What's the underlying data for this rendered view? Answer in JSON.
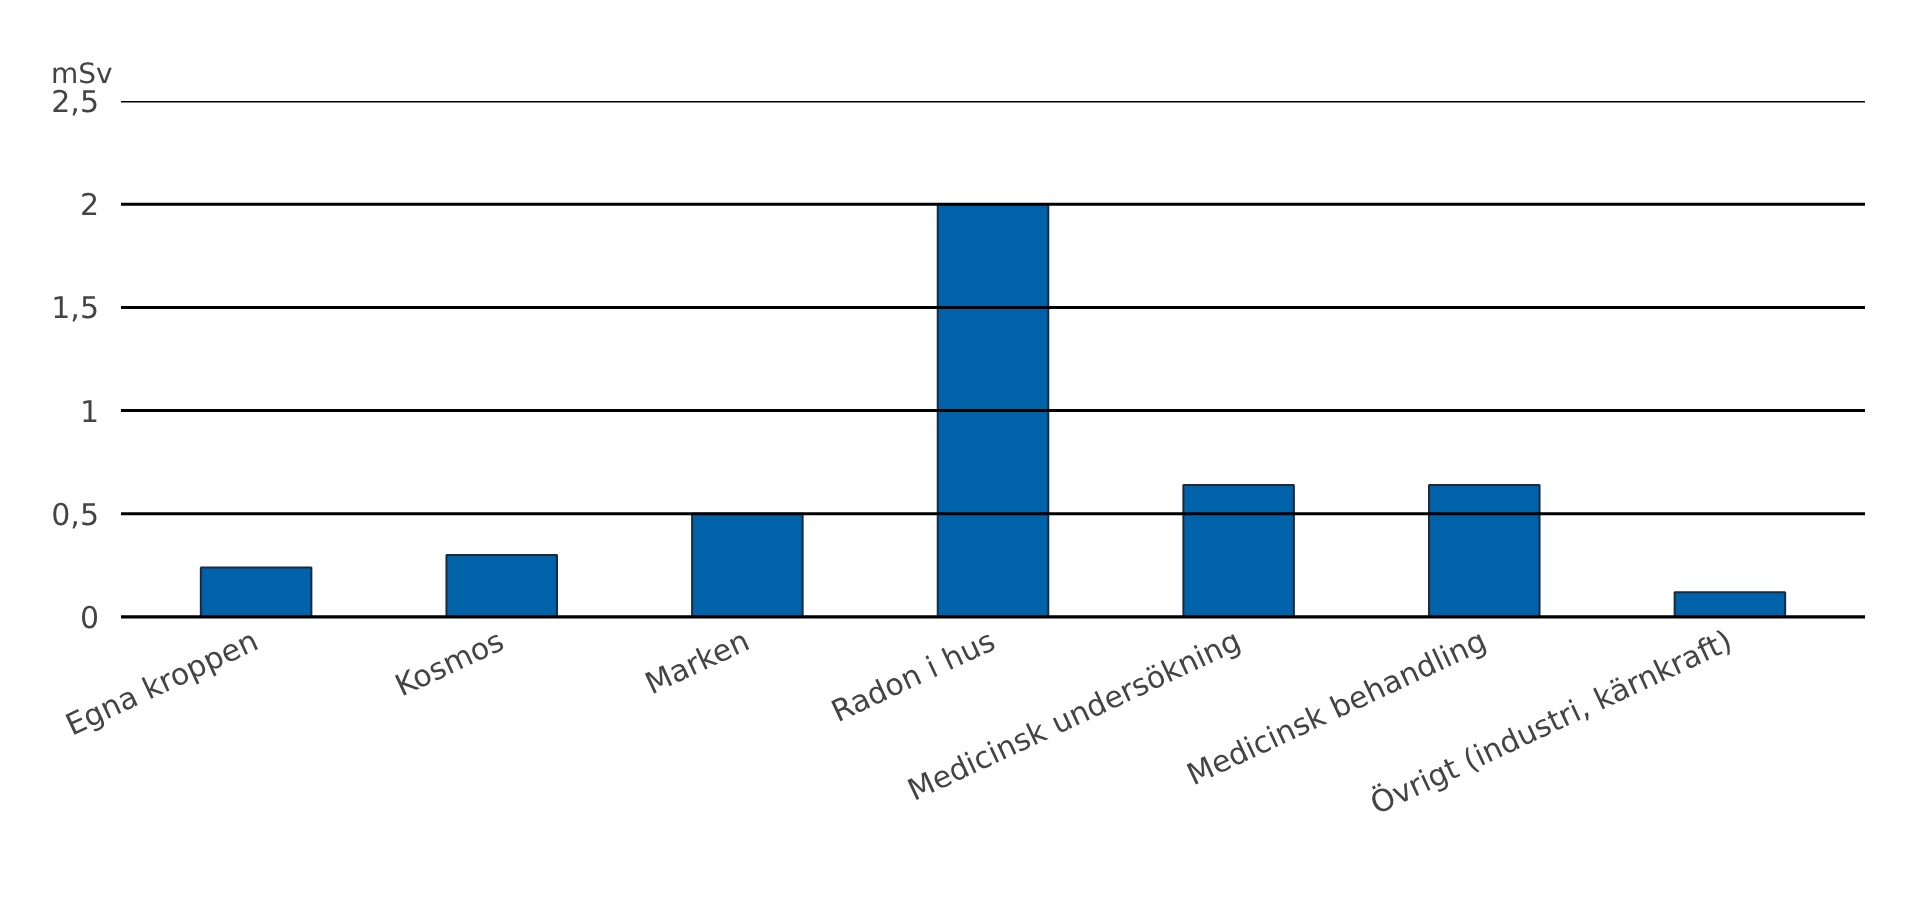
{
  "chart_data": {
    "type": "bar",
    "ylabel": "mSv",
    "categories": [
      "Egna kroppen",
      "Kosmos",
      "Marken",
      "Radon i hus",
      "Medicinsk undersökning",
      "Medicinsk behandling",
      "Övrigt (industri, kärnkraft)"
    ],
    "values": [
      0.24,
      0.3,
      0.5,
      2,
      0.64,
      0.64,
      0.12
    ],
    "color": "#0062a8",
    "ylim": [
      0,
      2.5
    ],
    "yticks": [
      {
        "value": 0,
        "label": "0"
      },
      {
        "value": 0.5,
        "label": "0,5"
      },
      {
        "value": 1,
        "label": "1"
      },
      {
        "value": 1.5,
        "label": "1,5"
      },
      {
        "value": 2,
        "label": "2"
      },
      {
        "value": 2.5,
        "label": "2,5"
      }
    ],
    "grid": "y"
  }
}
